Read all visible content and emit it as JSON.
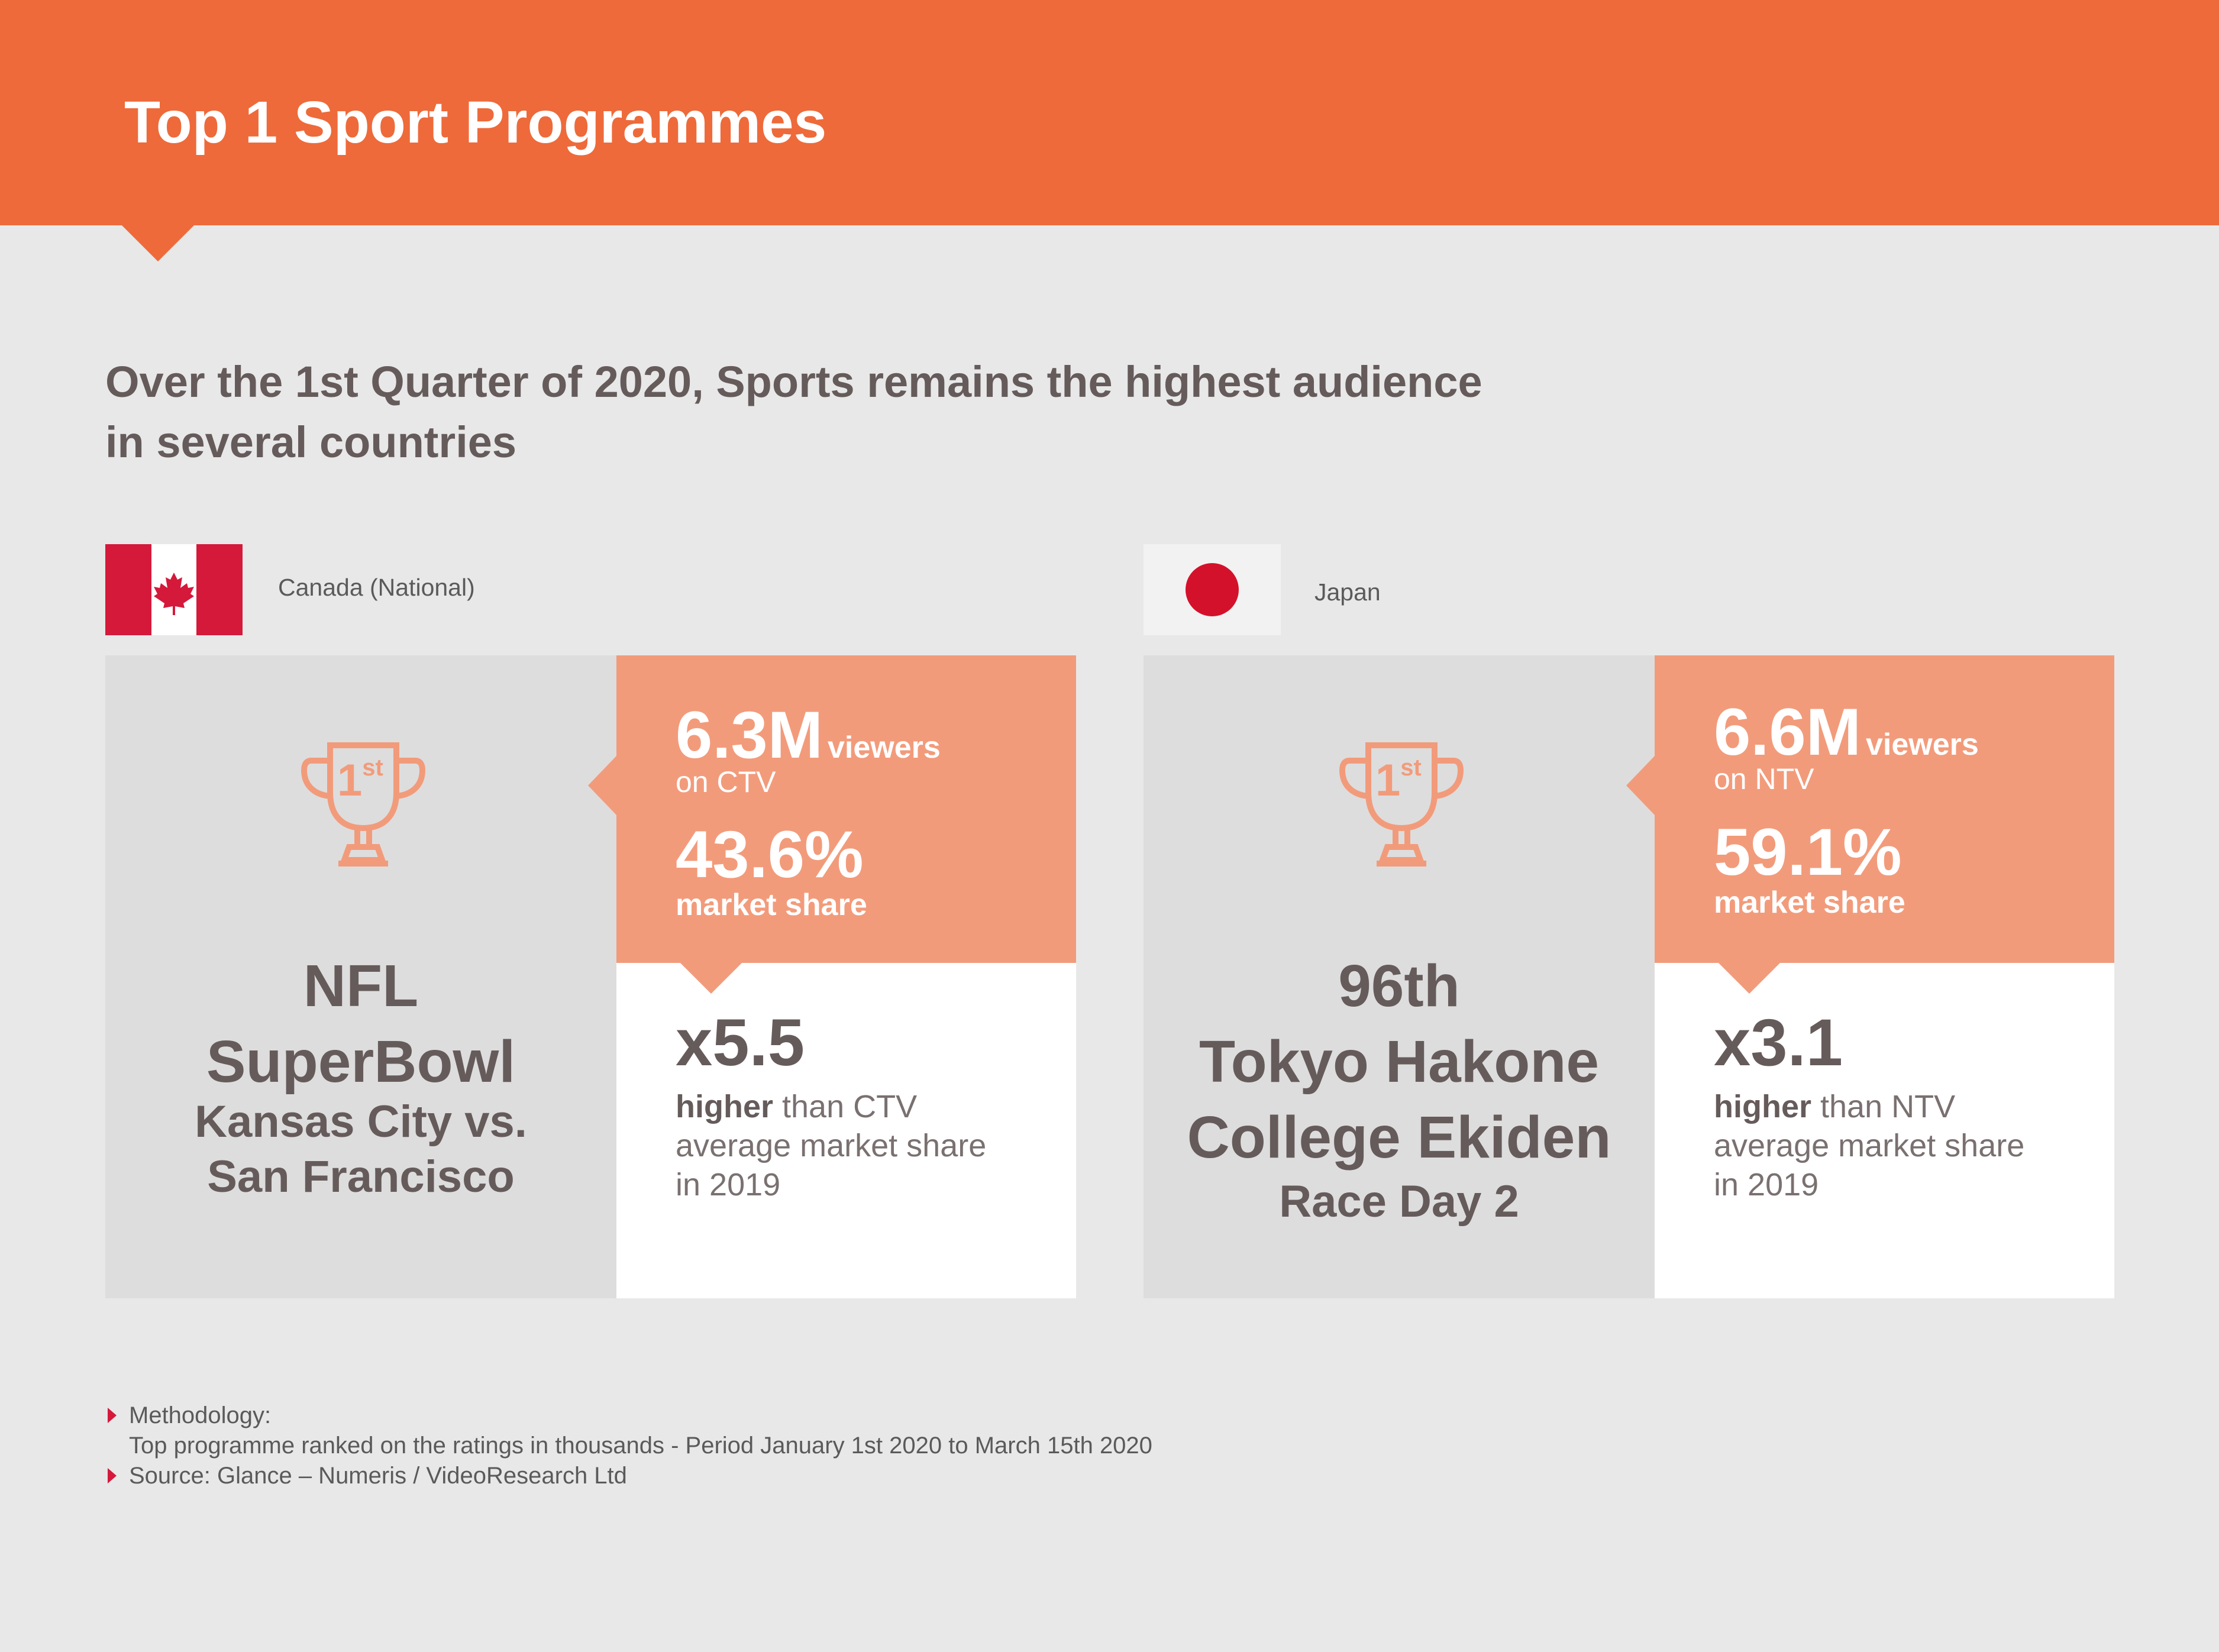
{
  "header": {
    "title": "Top 1 Sport Programmes"
  },
  "subtitle": {
    "line1": "Over the 1st Quarter of 2020, Sports remains the highest audience",
    "line2": "in several countries"
  },
  "colors": {
    "accent": "#ee6a3a",
    "stat_panel": "#f29b7b",
    "text_dark": "#665b5b",
    "bullet": "#d4193b"
  },
  "cards": [
    {
      "country": "Canada (National)",
      "flag_icon": "canada-flag-icon",
      "trophy_rank": "1",
      "trophy_suffix": "st",
      "programme": {
        "line1": "NFL",
        "line2": "SuperBowl",
        "line3": "Kansas City vs.",
        "line4": "San Francisco"
      },
      "viewers_value": "6.3M",
      "viewers_unit": "viewers",
      "channel_line": "on CTV",
      "share_value": "43.6%",
      "share_label": "market share",
      "multiplier": "x5.5",
      "higher_bold": "higher",
      "higher_rest": " than CTV",
      "avg_line": "average market share",
      "year_line": "in 2019"
    },
    {
      "country": "Japan",
      "flag_icon": "japan-flag-icon",
      "trophy_rank": "1",
      "trophy_suffix": "st",
      "programme": {
        "line1": "96th",
        "line2": "Tokyo Hakone",
        "line3": "College Ekiden",
        "line4": "Race Day 2"
      },
      "viewers_value": "6.6M",
      "viewers_unit": "viewers",
      "channel_line": "on NTV",
      "share_value": "59.1%",
      "share_label": "market share",
      "multiplier": "x3.1",
      "higher_bold": "higher",
      "higher_rest": " than NTV",
      "avg_line": "average market share",
      "year_line": "in 2019"
    }
  ],
  "footer": {
    "methodology_title": "Methodology:",
    "methodology_text": "Top programme ranked on the ratings in thousands - Period January 1st 2020 to March 15th 2020",
    "source": "Source: Glance – Numeris / VideoResearch Ltd"
  }
}
